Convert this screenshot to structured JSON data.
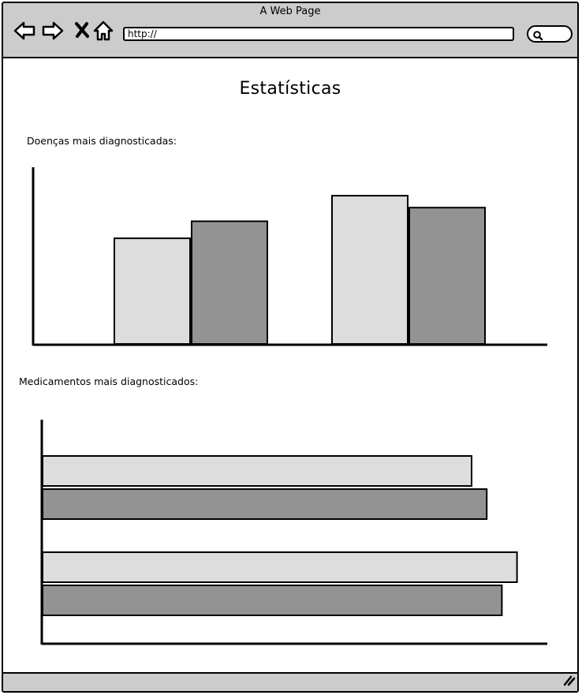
{
  "browser": {
    "window_title": "A Web Page",
    "url": "http://",
    "icons": [
      "back-arrow-icon",
      "forward-arrow-icon",
      "close-x-icon",
      "home-icon",
      "search-icon",
      "resize-handle-icon"
    ]
  },
  "page": {
    "title": "Estatísticas",
    "sections": {
      "diseases_label": "Doenças mais diagnosticadas:",
      "medicines_label": "Medicamentos mais diagnosticados:"
    }
  },
  "colors": {
    "light_bar": "#dddddd",
    "dark_bar": "#939393",
    "chrome": "#cccccc",
    "stroke": "#000000"
  },
  "chart_data": [
    {
      "type": "bar",
      "orientation": "vertical",
      "categories": [
        "",
        ""
      ],
      "series": [
        {
          "values": [
            0.62,
            0.87
          ],
          "color": "#dddddd"
        },
        {
          "values": [
            0.72,
            0.8
          ],
          "color": "#939393"
        }
      ],
      "title": "",
      "xlabel": "",
      "ylabel": "",
      "ylim": [
        0,
        1
      ],
      "grid": false
    },
    {
      "type": "bar",
      "orientation": "horizontal",
      "categories": [
        "",
        ""
      ],
      "series": [
        {
          "values": [
            0.85,
            0.94
          ],
          "color": "#dddddd"
        },
        {
          "values": [
            0.88,
            0.91
          ],
          "color": "#939393"
        }
      ],
      "title": "",
      "xlabel": "",
      "ylabel": "",
      "xlim": [
        0,
        1
      ],
      "grid": false
    }
  ]
}
